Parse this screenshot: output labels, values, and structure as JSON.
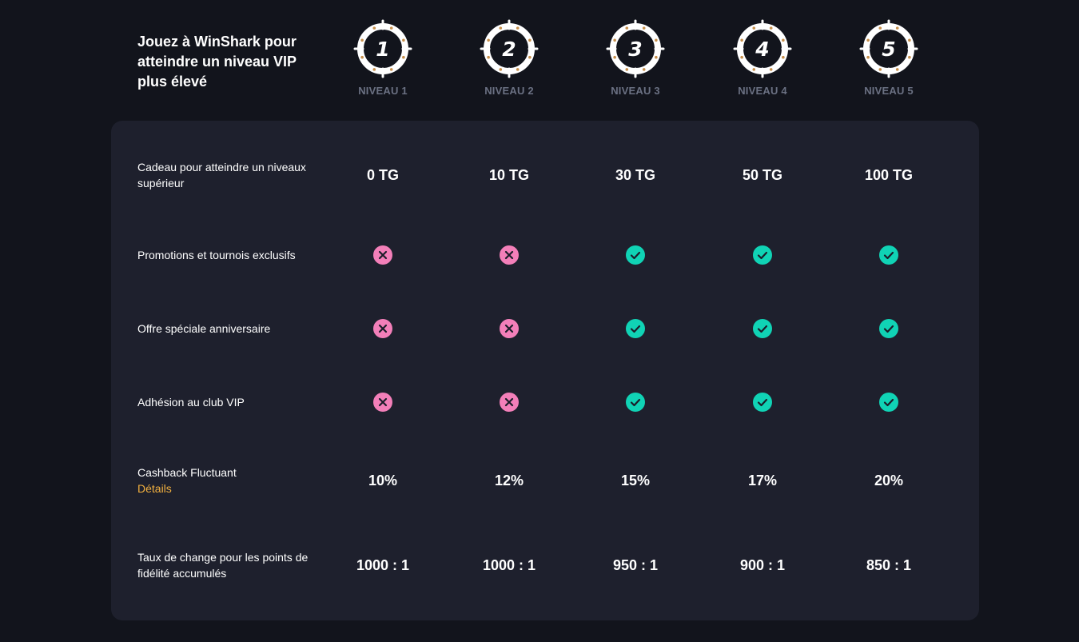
{
  "header": {
    "title": "Jouez à WinShark pour atteindre un niveau VIP plus élevé"
  },
  "levels": [
    {
      "number": "1",
      "label": "NIVEAU 1"
    },
    {
      "number": "2",
      "label": "NIVEAU 2"
    },
    {
      "number": "3",
      "label": "NIVEAU 3"
    },
    {
      "number": "4",
      "label": "NIVEAU 4"
    },
    {
      "number": "5",
      "label": "NIVEAU 5"
    }
  ],
  "rows": [
    {
      "label": "Cadeau pour atteindre un niveaux supérieur",
      "type": "text",
      "values": [
        "0 TG",
        "10 TG",
        "30 TG",
        "50 TG",
        "100 TG"
      ]
    },
    {
      "label": "Promotions et tournois exclusifs",
      "type": "icon",
      "values": [
        "no",
        "no",
        "yes",
        "yes",
        "yes"
      ]
    },
    {
      "label": "Offre spéciale anniversaire",
      "type": "icon",
      "values": [
        "no",
        "no",
        "yes",
        "yes",
        "yes"
      ]
    },
    {
      "label": "Adhésion au club VIP",
      "type": "icon",
      "values": [
        "no",
        "no",
        "yes",
        "yes",
        "yes"
      ]
    },
    {
      "label": "Cashback Fluctuant",
      "link": "Détails",
      "type": "text",
      "values": [
        "10%",
        "12%",
        "15%",
        "17%",
        "20%"
      ]
    },
    {
      "label": "Taux de change pour les points de fidélité accumulés",
      "type": "text",
      "values": [
        "1000 : 1",
        "1000 : 1",
        "950 : 1",
        "900 : 1",
        "850 : 1"
      ]
    }
  ],
  "colors": {
    "yes": "#10d3b5",
    "no": "#f37fb9",
    "link": "#f3b13f",
    "dot": "#c7904d"
  },
  "icons": {
    "yes": "check-circle-icon",
    "no": "cross-circle-icon",
    "level": "level-badge-icon"
  }
}
